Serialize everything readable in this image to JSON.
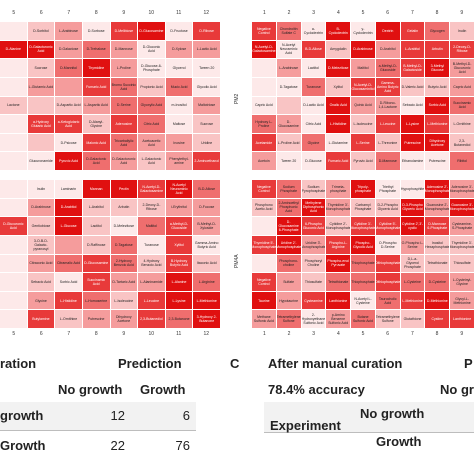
{
  "left_plates": {
    "col_numbers": [
      "5",
      "6",
      "7",
      "8",
      "9",
      "10",
      "11",
      "12"
    ],
    "top_row_label_left": "",
    "plate_a_cells": [
      [
        "",
        "D-Sorbitol",
        "L-Arabinose",
        "D-Sorbose",
        "D-Melibiose",
        "D-Glucosamine",
        "D-Fructose",
        "D-Ribose"
      ],
      [
        "D-Alanine",
        "D-Galacturonic Acid",
        "D-Galactose",
        "D-Trehalose",
        "D-Mannose",
        "D-Gluconic Acid",
        "D-Xylose",
        "L-Lactic Acid"
      ],
      [
        "",
        "Sucrose",
        "D-Mannitol",
        "Thymidine",
        "L-Proline",
        "D-Glucose-6-Phosphate",
        "Glycerol",
        "Tween 20"
      ],
      [
        "",
        "L-Glutamic Acid",
        "",
        "Fumaric Acid",
        "Bromo Succinic Acid",
        "Propionic Acid",
        "Mucic Acid",
        "Glycolic Acid"
      ],
      [
        "Lactone",
        "",
        "D-Aspartic Acid",
        "L-Aspartic Acid",
        "D-Serine",
        "Glyoxylic Acid",
        "m-Inositol",
        "Maltotriose"
      ],
      [
        "",
        "a-Hydroxy Glutaric Acid",
        "a-Ketoglutaric Acid",
        "D-Alanyl-Glycine",
        "Adenosine",
        "Citric Acid",
        "Maltose",
        "Sucrose"
      ],
      [
        "",
        "",
        "D-Psicose",
        "Malonic Acid",
        "Tricarballylic Acid",
        "Acetoacetic Acid",
        "Inosine",
        "Uridine"
      ],
      [
        "",
        "Glucuronamide",
        "Pyruvic Acid",
        "D-Galactonic Acid",
        "D-Galacturonic Acid",
        "L-Galactonic Acid",
        "Phenylethyl-amine",
        "2-Aminoethanol"
      ]
    ],
    "plate_b_cells": [
      [
        "",
        "Inulin",
        "Laminarin",
        "Mannan",
        "Pectin",
        "N-Acetyl-D-Galactosamine",
        "N-Acetyl Neuraminic Acid",
        "B-D-Allose"
      ],
      [
        "",
        "D-Arabinose",
        "D-Arabitol",
        "L-Arabitol",
        "Arbutin",
        "2-Deoxy-D-Ribose",
        "i-Erythritol",
        "D-Fucose"
      ],
      [
        "D-Glucuronic Acid",
        "Gentiobiose",
        "L-Glucose",
        "Lactitol",
        "D-Melezitose",
        "Maltitol",
        "a-Methyl-D-Glucoside",
        "B-Methyl-D-Xyloside"
      ],
      [
        "",
        "3-O-B-D-Galacto-pyranosyl",
        "",
        "D-Raffinose",
        "D-Tagatose",
        "Turanose",
        "Xylitol",
        "Gamma-Amino Butyric Acid"
      ],
      [
        "",
        "Citraconic Acid",
        "Citramalic Acid",
        "D-Glucosamine",
        "2-Hydroxy Benzoic Acid",
        "4-Hydroxy Benzoic Acid",
        "B-Hydroxy Butyric Acid",
        "Itaconic Acid"
      ],
      [
        "",
        "Sebacic Acid",
        "Sorbic Acid",
        "Succinamic Acid",
        "D-Tartaric Acid",
        "L-Alaninamide",
        "L-Alanine",
        "L-Arginine"
      ],
      [
        "",
        "Glycine",
        "L-Histidine",
        "L-Homoserine",
        "L-Isoleucine",
        "L-Leucine",
        "L-Lysine",
        "L-Methionine"
      ],
      [
        "",
        "Butylamine",
        "L-Ornithine",
        "Putrescine",
        "Dihydroxy Acetone",
        "2,3-Butanediol",
        "2,3-Butanone",
        "3-Hydroxy 2-Butanone"
      ]
    ],
    "left_row_labels_a": [
      "",
      "",
      "",
      "",
      "",
      "",
      "",
      ""
    ],
    "left_row_labels_b": [
      "",
      "",
      "",
      "",
      "",
      "",
      "",
      ""
    ]
  },
  "right_plates": {
    "col_numbers": [
      "1",
      "2",
      "3",
      "4",
      "5",
      "6",
      "7",
      "8",
      "9"
    ],
    "side_label_top": "PM2",
    "side_label_bottom": "PM4A",
    "plate_c_cells": [
      [
        "Negative Control",
        "Chondroitin Sulfate C",
        "a-Cyclodextrin",
        "B-Cyclodextrin",
        "y-Cyclodextrin",
        "Dextrin",
        "Gelatin",
        "Glycogen",
        "Inulin"
      ],
      [
        "N-Acetyl-D-Galactosamine",
        "N-Acetyl Neuraminic Acid",
        "B-D-Allose",
        "Amygdalin",
        "D-Arabinose",
        "D-Arabitol",
        "L-Arabitol",
        "Arbutin",
        "2-Deoxy-D-Ribose"
      ],
      [
        "",
        "L-Arabinose",
        "Lactitol",
        "D-Melezitose",
        "Maltitol",
        "a-Methyl-D-Glucoside",
        "B-Methyl-D-Galactoside",
        "3-Methyl Glucose",
        "B-Methyl-D-Glucuronic Acid"
      ],
      [
        "",
        "D-Tagatose",
        "Turanose",
        "Xylitol",
        "N-Acetyl-D-Glucosaminitol",
        "Gamma-Amino Butyric Acid",
        "D-Valeric Acid",
        "Butyric Acid",
        "Capric Acid"
      ],
      [
        "Capric Acid",
        "",
        "D-Lactic Acid",
        "Oxalic Acid",
        "Quinic Acid",
        "D-Ribono-1,4-Lactone",
        "Sebacic Acid",
        "Sorbic Acid",
        "Succinamic Acid"
      ],
      [
        "Hydroxy L-Proline",
        "D-Glucosamine",
        "Citric Acid",
        "L-Histidine",
        "L-Isoleucine",
        "L-Leucine",
        "L-Lysine",
        "L-Methionine",
        "L-Ornithine"
      ],
      [
        "Acetamide",
        "L-Proline Acid",
        "Glycine",
        "L-Glutamine",
        "L-Serine",
        "L-Threonine",
        "Putrescine",
        "Dihydroxy Acetone",
        "2,3-Butanediol"
      ],
      [
        "Acetoin",
        "Tween 20",
        "D-Glucose",
        "Fumaric Acid",
        "Pyruvic Acid",
        "D-Mannose",
        "Ethanolamine",
        "Putrescine",
        "Ribitol"
      ]
    ],
    "plate_d_cells": [
      [
        "Negative Control",
        "Sodium Phosphate",
        "Sodium Pyrophosphate",
        "Trimeta-phosphate",
        "Tripoly-phosphate",
        "Triethyl Phosphate",
        "Hypophosphite",
        "Adenosine 2'-Monophosphate",
        "Adenosine 3'-Monophosphate"
      ],
      [
        "Phosphono Acetic Acid",
        "2-Aminoethyl Phosphonic Acid",
        "Methylene Diphosphonic Acid",
        "Thymidine 3'-Monophosphate",
        "Carbamyl Phosphate",
        "D-2-Phospho Glyceric Acid",
        "D-3-Phospho Glyceric Acid",
        "Guanosine 2'-Monophosphate",
        "Guanosine 3'-Monophosphate"
      ],
      [
        "",
        "D-Glucosamine 6-Phosphate",
        "6-Phospho Gluconic Acid",
        "Cytidine 2'-Monophosphate",
        "Cytidine 3'-Monophosphate",
        "Cytidine 5'-Monophosphate",
        "Cytidine 2',3'-cyclic",
        "D-Mannose 6-Phosphate",
        "Cysteamine-S-Phosphate"
      ],
      [
        "Thymidine 5'-Monophosphate",
        "Uridine 2'-Monophosphate",
        "Uridine 3'-Monophosphate",
        "Phospho-L-Arginine",
        "Phospho-Glycolic Acid",
        "O-Phospho D-Serine",
        "O-Phospho L-Serine",
        "Inositol Hexaphosphate",
        "Thymidine 3'-Monophosphate"
      ],
      [
        "",
        "Phosphono-choline",
        "Phosphoryl Choline",
        "Phospho-enol Pyruvate",
        "Thiophosphate",
        "Dithiophosphate",
        "D,L-a-Glycerol Phosphate",
        "Tetrathionate",
        "Thiosulfate"
      ],
      [
        "Negative Control",
        "Sulfate",
        "Thiosulfate",
        "Tetrathionate",
        "Thiophosphate",
        "Dithiophosphate",
        "L-Cysteine",
        "D-Cysteine",
        "L-Cysteinyl-Glycine"
      ],
      [
        "Taurine",
        "Hypotaurine",
        "Cysteamine",
        "Lanthionine",
        "N-Acetyl L-Cysteine",
        "Taurocholic Acid",
        "L-Methionine",
        "D-Methionine",
        "Glycyl-L-Methionine"
      ],
      [
        "Methane Sulfonic Acid",
        "Tetramethylene Sulfone",
        "2-Hydroxyethane Sulfonic Acid",
        "p-Amino Benzene Sulfonic Acid",
        "Butane Sulfonic Acid",
        "Tetramethylene Sulfone",
        "Glutathione",
        "Cystine",
        "Lanthionine"
      ]
    ]
  },
  "left_table": {
    "header_partial": "ration",
    "prediction_title": "Prediction",
    "col_no_growth": "No growth",
    "col_growth": "Growth",
    "row1_label": "growth",
    "row2_label": "Growth",
    "row1_values": [
      "12",
      "6"
    ],
    "row2_values": [
      "22",
      "76"
    ]
  },
  "right_table": {
    "panel_letter": "C",
    "header": "After manual curation",
    "accuracy": "78.4% accuracy",
    "prediction_partial": "P",
    "col_partial": "No gr",
    "row_group_label": "Experiment",
    "row1_label": "No growth",
    "row2_label": "Growth"
  },
  "colors": {
    "intensity_scale": [
      "#fde9e9",
      "#f9c4c4",
      "#f59c9c",
      "#ef6e6e",
      "#e83a3a",
      "#e01010"
    ]
  }
}
